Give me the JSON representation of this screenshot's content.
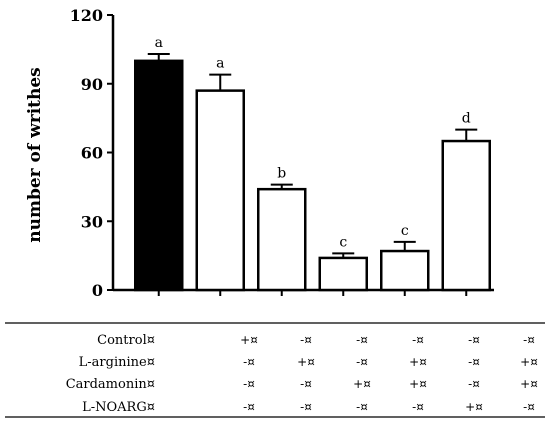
{
  "chart_data": {
    "type": "bar",
    "ylabel": "number of writhes",
    "ylim": [
      0,
      120
    ],
    "yticks": [
      0,
      30,
      60,
      90,
      120
    ],
    "bars": [
      {
        "value": 100,
        "error": 3,
        "letter": "a",
        "fill": "#000000"
      },
      {
        "value": 87,
        "error": 7,
        "letter": "a",
        "fill": "#ffffff"
      },
      {
        "value": 44,
        "error": 2,
        "letter": "b",
        "fill": "#ffffff"
      },
      {
        "value": 14,
        "error": 2,
        "letter": "c",
        "fill": "#ffffff"
      },
      {
        "value": 17,
        "error": 4,
        "letter": "c",
        "fill": "#ffffff"
      },
      {
        "value": 65,
        "error": 5,
        "letter": "d",
        "fill": "#ffffff"
      }
    ]
  },
  "table": {
    "rows": [
      {
        "label": "Control¤",
        "cells": [
          "+¤",
          "-¤",
          "-¤",
          "-¤",
          "-¤",
          "-¤"
        ]
      },
      {
        "label": "L-arginine¤",
        "cells": [
          "-¤",
          "+¤",
          "-¤",
          "+¤",
          "-¤",
          "+¤"
        ]
      },
      {
        "label": "Cardamonin¤",
        "cells": [
          "-¤",
          "-¤",
          "+¤",
          "+¤",
          "-¤",
          "+¤"
        ]
      },
      {
        "label": "L-NOARG¤",
        "cells": [
          "-¤",
          "-¤",
          "-¤",
          "-¤",
          "+¤",
          "-¤"
        ]
      }
    ]
  }
}
